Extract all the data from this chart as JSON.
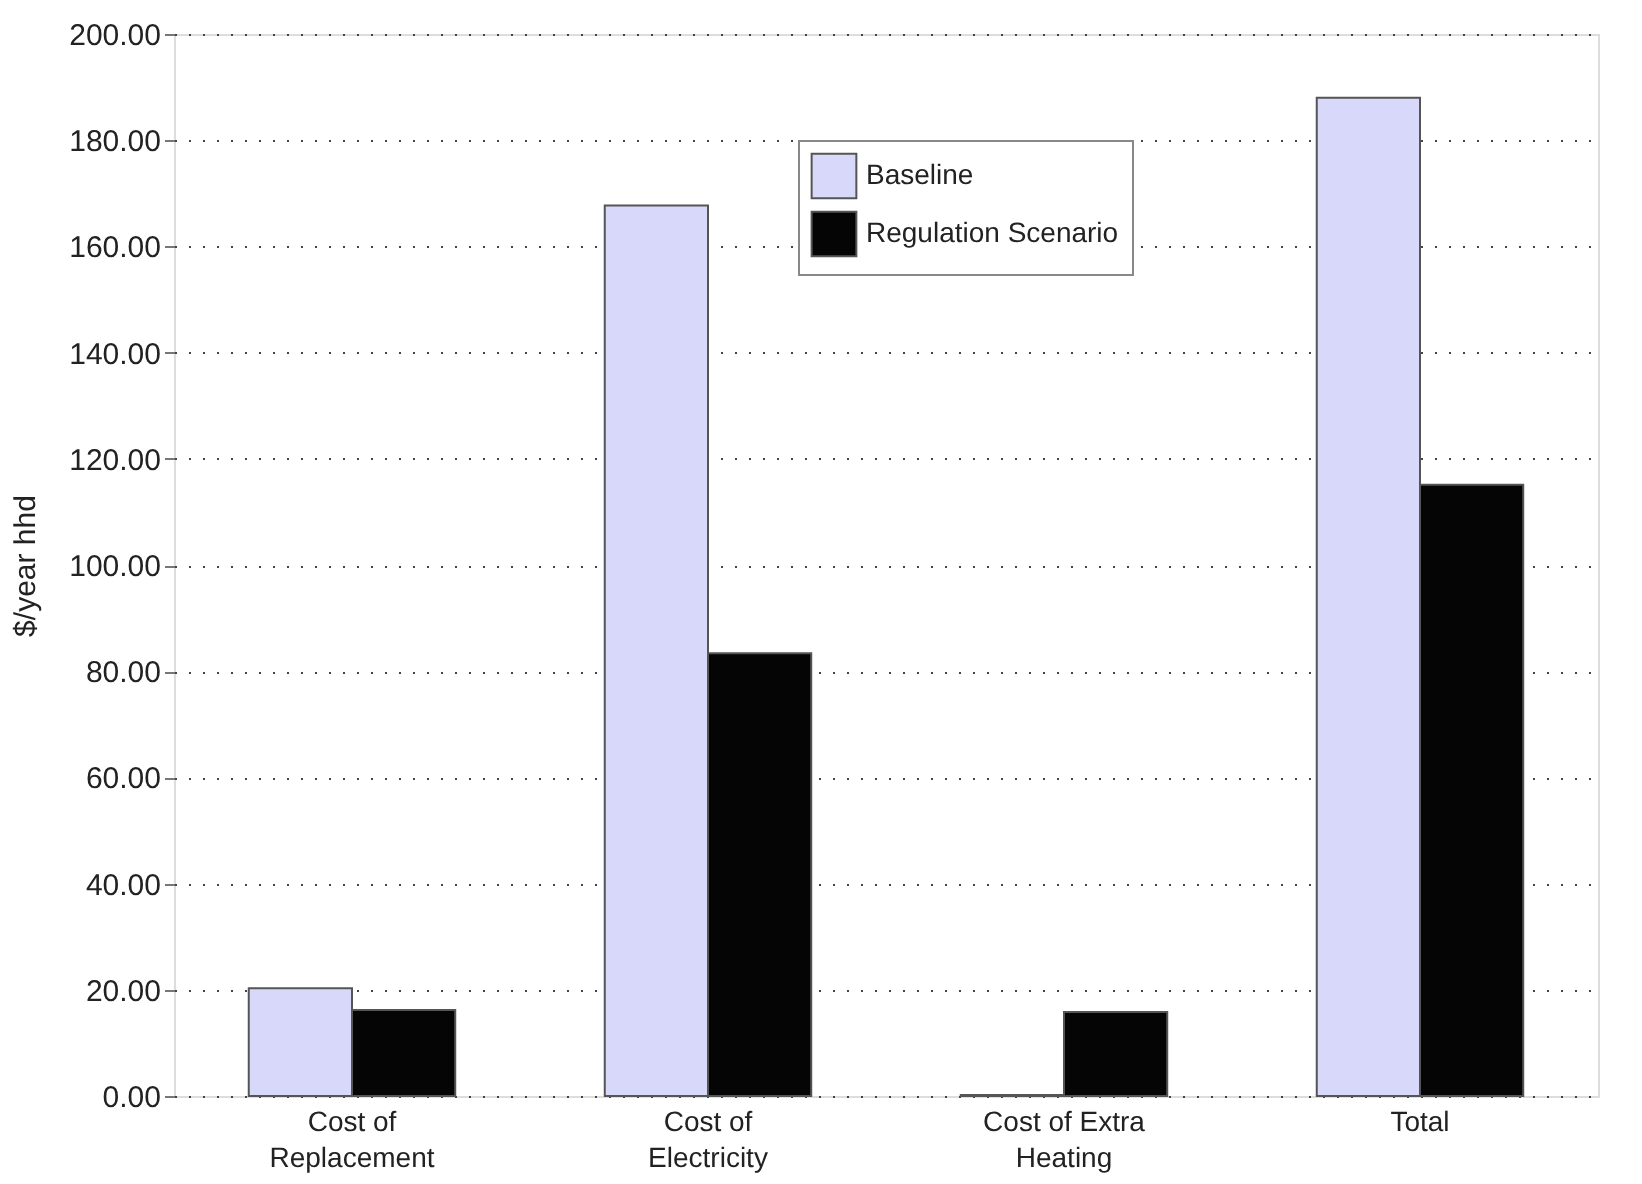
{
  "chart_data": {
    "type": "bar",
    "ylabel": "$/year hhd",
    "categories": [
      "Cost of Replacement",
      "Cost of Electricity",
      "Cost of Extra Heating",
      "Total"
    ],
    "series": [
      {
        "name": "Baseline",
        "color": "#d8d8fa",
        "values": [
          20.3,
          167.7,
          0.2,
          188.0
        ]
      },
      {
        "name": "Regulation Scenario",
        "color": "#050505",
        "values": [
          16.2,
          83.4,
          15.8,
          115.1
        ]
      }
    ],
    "ylim": [
      0,
      200
    ],
    "yticks": [
      {
        "value": 0,
        "label": "0.00"
      },
      {
        "value": 20,
        "label": "20.00"
      },
      {
        "value": 40,
        "label": "40.00"
      },
      {
        "value": 60,
        "label": "60.00"
      },
      {
        "value": 80,
        "label": "80.00"
      },
      {
        "value": 100,
        "label": "100.00"
      },
      {
        "value": 120,
        "label": "120.00"
      },
      {
        "value": 140,
        "label": "140.00"
      },
      {
        "value": 160,
        "label": "160.00"
      },
      {
        "value": 180,
        "label": "180.00"
      },
      {
        "value": 200,
        "label": "200.00"
      }
    ],
    "grid": "y",
    "legend": "top"
  }
}
